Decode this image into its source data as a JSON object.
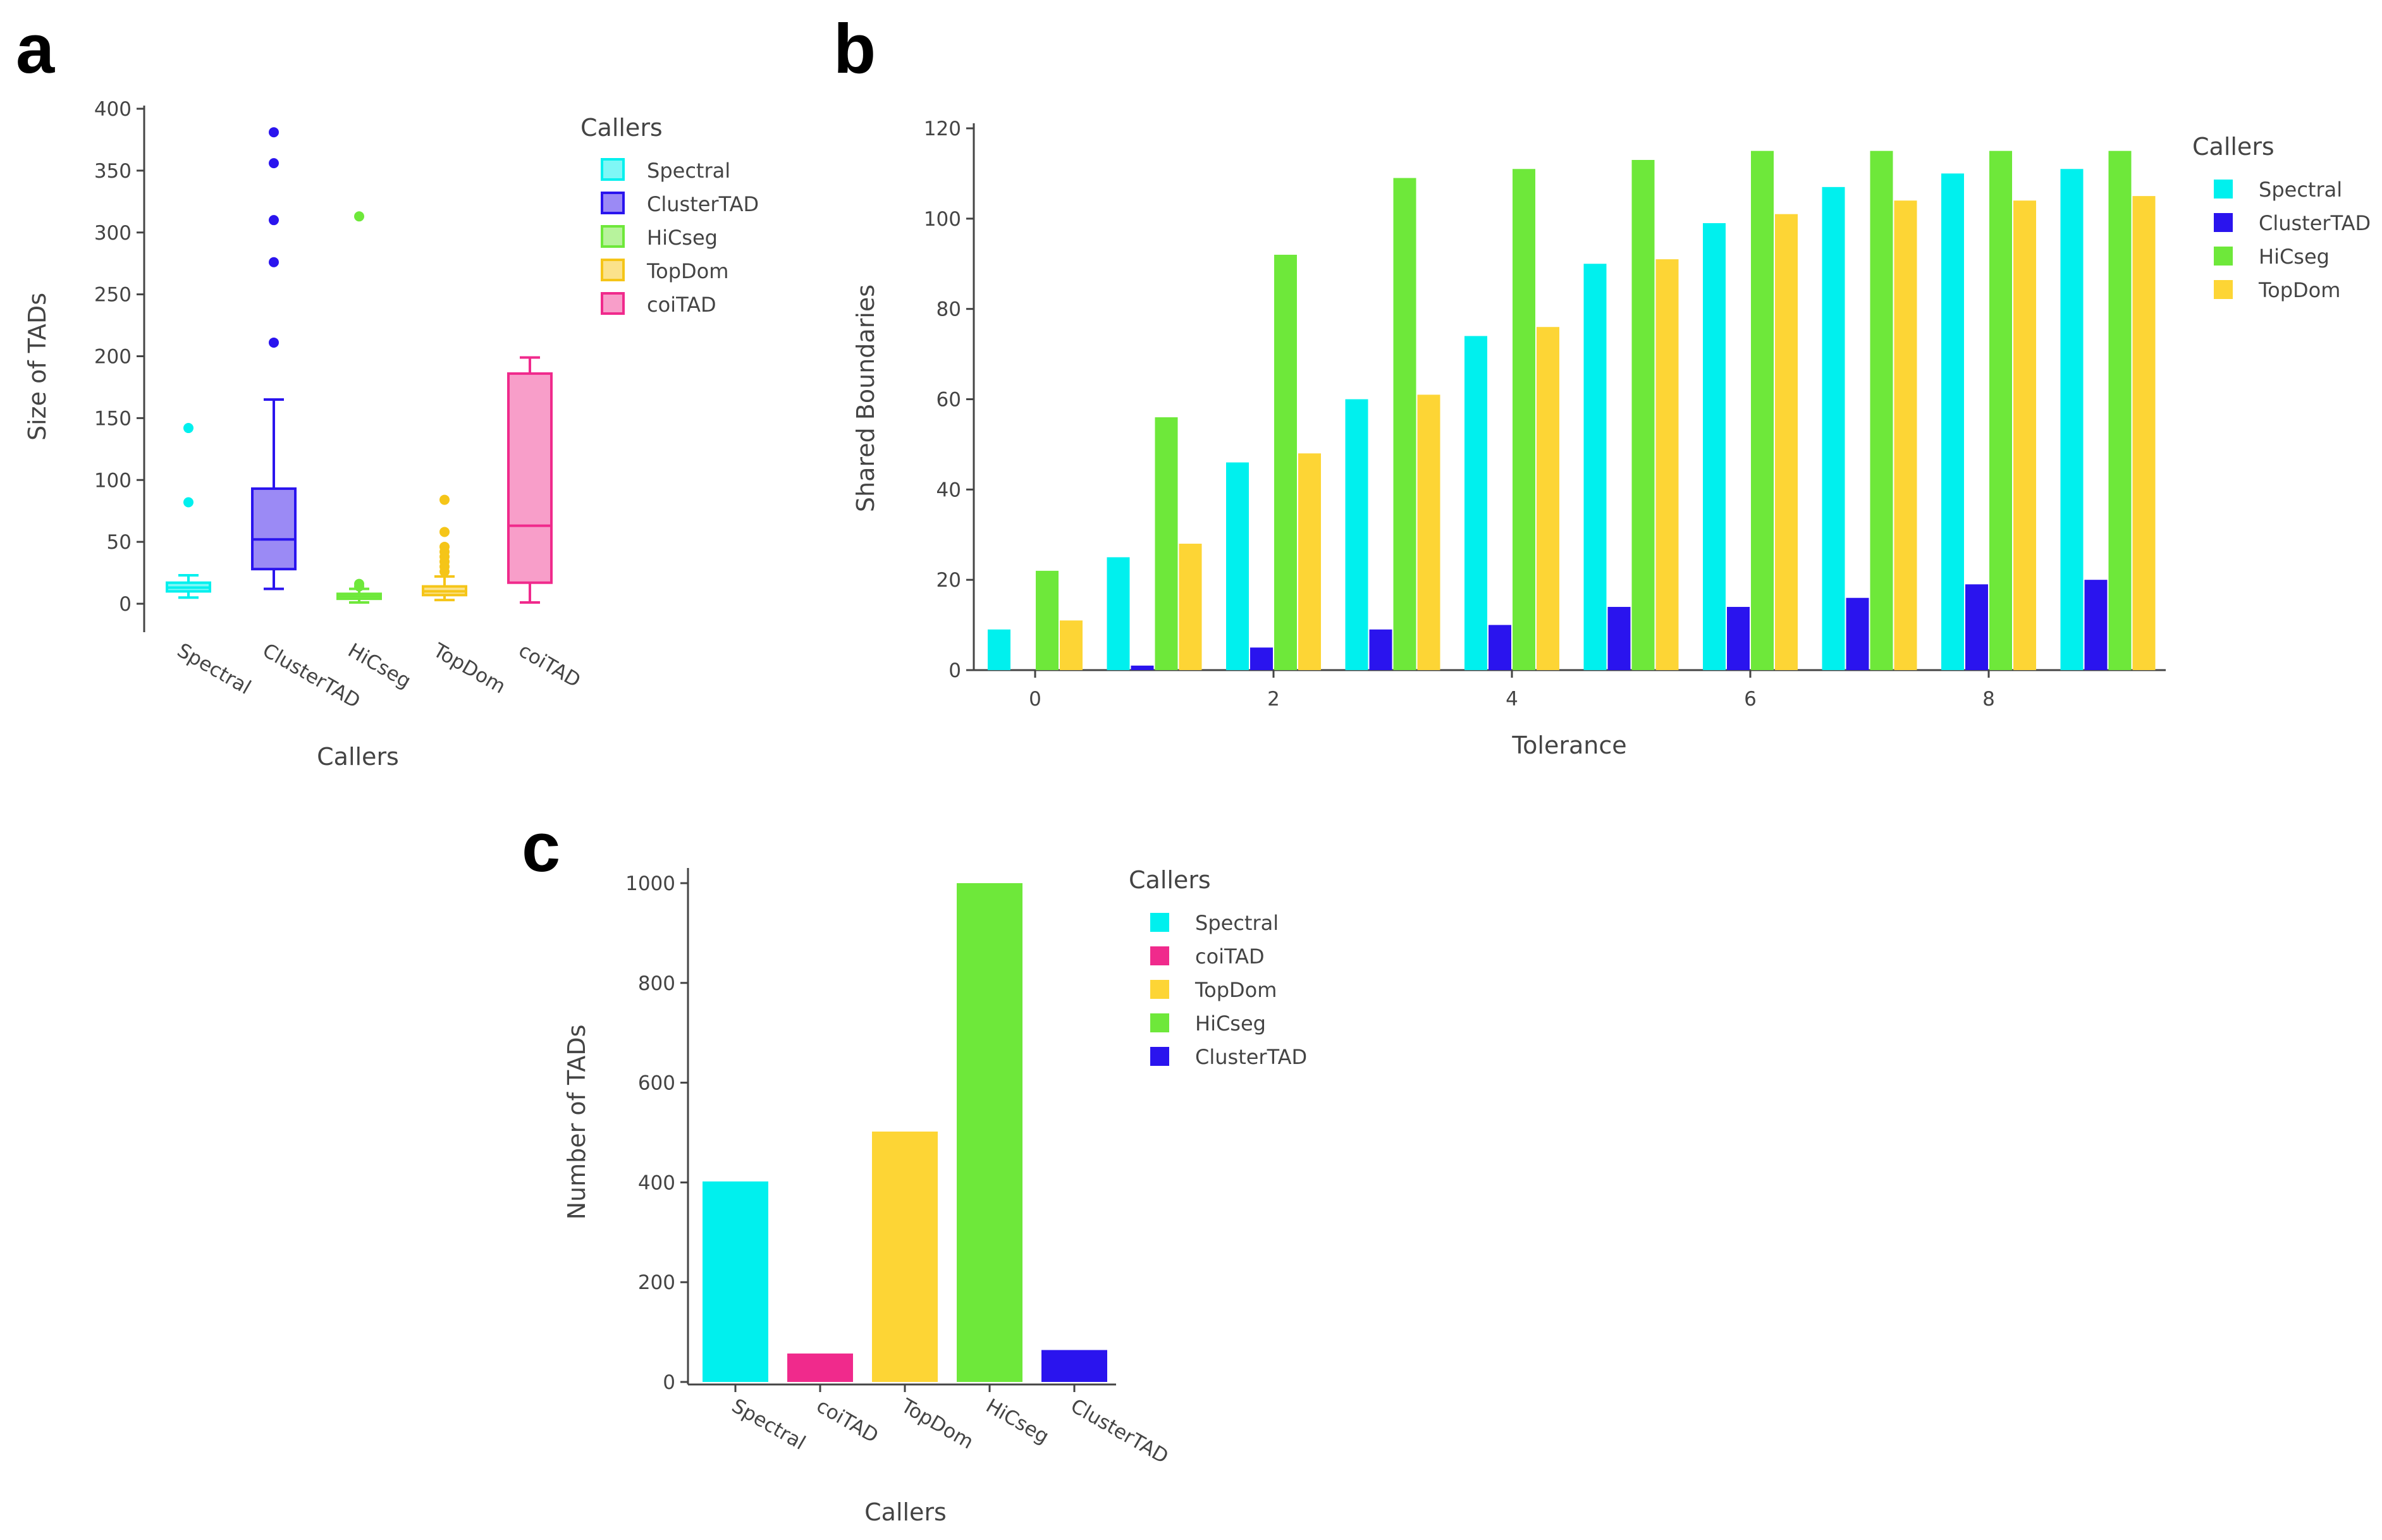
{
  "panels": {
    "a": "a",
    "b": "b",
    "c": "c"
  },
  "chart_data": [
    {
      "id": "a",
      "type": "box",
      "xlabel": "Callers",
      "ylabel": "Size of TADs",
      "ylim": [
        0,
        400
      ],
      "yticks": [
        0,
        50,
        100,
        150,
        200,
        250,
        300,
        350,
        400
      ],
      "legend_title": "Callers",
      "categories": [
        "Spectral",
        "ClusterTAD",
        "HiCseg",
        "TopDom",
        "coiTAD"
      ],
      "series": [
        {
          "name": "Spectral",
          "color": "#00f0ee",
          "fill": "#7ff7f6",
          "min": 5,
          "q1": 10,
          "median": 13,
          "q3": 17,
          "max": 23,
          "outliers": [
            82,
            142
          ]
        },
        {
          "name": "ClusterTAD",
          "color": "#2a14ee",
          "fill": "#9b8af5",
          "min": 12,
          "q1": 28,
          "median": 52,
          "q3": 93,
          "max": 165,
          "outliers": [
            211,
            276,
            310,
            356,
            381
          ]
        },
        {
          "name": "HiCseg",
          "color": "#6ee83a",
          "fill": "#b7f39c",
          "min": 1,
          "q1": 4,
          "median": 6,
          "q3": 8,
          "max": 12,
          "outliers": [
            14,
            16,
            313
          ]
        },
        {
          "name": "TopDom",
          "color": "#f5c518",
          "fill": "#fbe28b",
          "min": 3,
          "q1": 7,
          "median": 10,
          "q3": 14,
          "max": 22,
          "outliers": [
            26,
            30,
            34,
            38,
            42,
            46,
            58,
            84
          ]
        },
        {
          "name": "coiTAD",
          "color": "#f02a8c",
          "fill": "#f89ec9",
          "min": 1,
          "q1": 17,
          "median": 63,
          "q3": 186,
          "max": 199,
          "outliers": []
        }
      ]
    },
    {
      "id": "b",
      "type": "bar",
      "xlabel": "Tolerance",
      "ylabel": "Shared Boundaries",
      "ylim": [
        0,
        120
      ],
      "yticks": [
        0,
        20,
        40,
        60,
        80,
        100,
        120
      ],
      "xticks": [
        0,
        2,
        4,
        6,
        8
      ],
      "legend_title": "Callers",
      "categories": [
        0,
        1,
        2,
        3,
        4,
        5,
        6,
        7,
        8,
        9
      ],
      "series": [
        {
          "name": "Spectral",
          "color": "#00f0ee",
          "values": [
            9,
            25,
            46,
            60,
            74,
            90,
            99,
            107,
            110,
            111
          ]
        },
        {
          "name": "ClusterTAD",
          "color": "#2a14ee",
          "values": [
            0,
            1,
            5,
            9,
            10,
            14,
            14,
            16,
            19,
            20
          ]
        },
        {
          "name": "HiCseg",
          "color": "#6ee83a",
          "values": [
            22,
            56,
            92,
            109,
            111,
            113,
            115,
            115,
            115,
            115
          ]
        },
        {
          "name": "TopDom",
          "color": "#fdd535",
          "values": [
            11,
            28,
            48,
            61,
            76,
            91,
            101,
            104,
            104,
            105
          ]
        }
      ]
    },
    {
      "id": "c",
      "type": "bar",
      "xlabel": "Callers",
      "ylabel": "Number of TADs",
      "ylim": [
        0,
        1000
      ],
      "yticks": [
        0,
        200,
        400,
        600,
        800,
        1000
      ],
      "legend_title": "Callers",
      "categories": [
        "Spectral",
        "coiTAD",
        "TopDom",
        "HiCseg",
        "ClusterTAD"
      ],
      "values": [
        402,
        57,
        502,
        1000,
        64
      ],
      "colors": [
        "#00f0ee",
        "#f02a8c",
        "#fdd535",
        "#6ee83a",
        "#2a14ee"
      ],
      "legend": [
        {
          "name": "Spectral",
          "color": "#00f0ee"
        },
        {
          "name": "coiTAD",
          "color": "#f02a8c"
        },
        {
          "name": "TopDom",
          "color": "#fdd535"
        },
        {
          "name": "HiCseg",
          "color": "#6ee83a"
        },
        {
          "name": "ClusterTAD",
          "color": "#2a14ee"
        }
      ]
    }
  ]
}
